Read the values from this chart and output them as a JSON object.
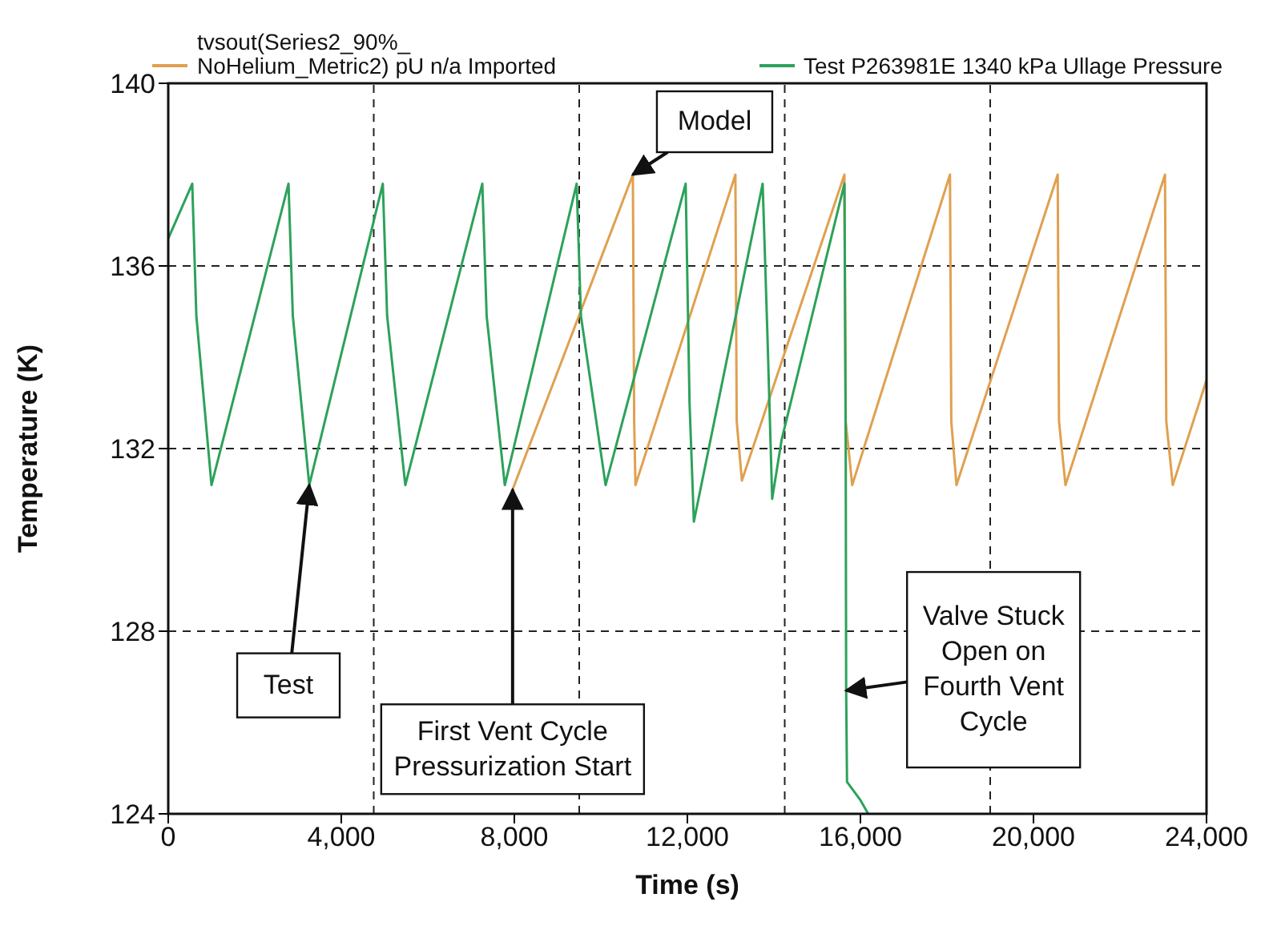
{
  "chart_data": {
    "type": "line",
    "xlabel": "Time (s)",
    "ylabel": "Temperature (K)",
    "xlim": [
      0,
      24000
    ],
    "ylim": [
      124,
      140
    ],
    "xticks": [
      0,
      {
        "value": 4000,
        "label": "4,000"
      },
      {
        "value": 8000,
        "label": "8,000"
      },
      {
        "value": 12000,
        "label": "12,000"
      },
      {
        "value": 16000,
        "label": "16,000"
      },
      {
        "value": 20000,
        "label": "20,000"
      },
      {
        "value": 24000,
        "label": "24,000"
      }
    ],
    "yticks": [
      124,
      128,
      132,
      136,
      140
    ],
    "grid": "y",
    "legend": "top",
    "ref_lines": [
      {
        "axis": "x",
        "value": 4750,
        "color": "#222222",
        "line_style": "dashed"
      },
      {
        "axis": "x",
        "value": 9500,
        "color": "#222222",
        "line_style": "dashed"
      },
      {
        "axis": "x",
        "value": 14250,
        "color": "#222222",
        "line_style": "dashed"
      },
      {
        "axis": "x",
        "value": 19000,
        "color": "#222222",
        "line_style": "dashed"
      }
    ],
    "series": [
      {
        "name": "tvsout(Series2_90%_ NoHelium_Metric2) pU n/a Imported",
        "color": "#e0a050",
        "x": [
          7960,
          10740,
          10770,
          10800,
          13110,
          13140,
          13260,
          15630,
          15660,
          15810,
          18070,
          18100,
          18220,
          20560,
          20590,
          20740,
          23040,
          23070,
          23220,
          24000
        ],
        "values": [
          131.1,
          138,
          132.6,
          131.2,
          138,
          132.6,
          131.3,
          138,
          132.6,
          131.2,
          138,
          132.6,
          131.2,
          138,
          132.6,
          131.2,
          138,
          132.6,
          131.2,
          133.5
        ]
      },
      {
        "name": "Test P263981E 1340 kPa Ullage Pressure",
        "color": "#2ca25a",
        "x": [
          0,
          555,
          650,
          1000,
          2780,
          2880,
          3260,
          4960,
          5060,
          5480,
          7260,
          7360,
          7780,
          9440,
          9540,
          10110,
          11960,
          12050,
          12150,
          13740,
          13850,
          13960,
          14180,
          15630,
          15660,
          15670,
          15690,
          16000,
          16180
        ],
        "values": [
          136.6,
          137.8,
          134.9,
          131.2,
          137.8,
          134.9,
          131.2,
          137.8,
          134.9,
          131.2,
          137.8,
          134.9,
          131.2,
          137.8,
          134.9,
          131.2,
          137.8,
          133,
          130.4,
          137.8,
          134.5,
          130.9,
          132.2,
          137.8,
          132,
          126.7,
          124.7,
          124.3,
          124
        ]
      }
    ],
    "annotations": [
      {
        "text": "Test",
        "x": 3260,
        "y": 131.2
      },
      {
        "text": "Model",
        "x": 10740,
        "y": 138
      },
      {
        "text": "First Vent Cycle Pressurization Start",
        "x": 7960,
        "y": 131.1
      },
      {
        "text": "Valve Stuck Open on Fourth Vent Cycle",
        "x": 15670,
        "y": 126.7
      }
    ]
  }
}
